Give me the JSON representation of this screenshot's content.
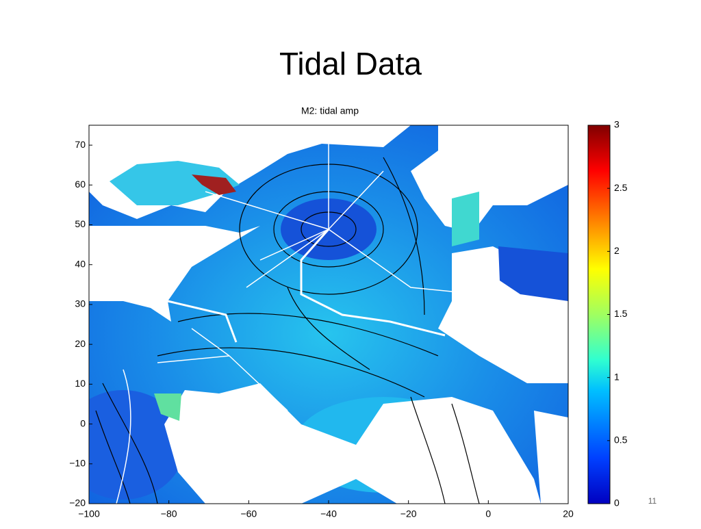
{
  "slide": {
    "title": "Tidal Data",
    "number": "11"
  },
  "chart_data": {
    "type": "map",
    "title": "M2: tidal amp",
    "colormap": "jet",
    "xlim": [
      -100,
      20
    ],
    "xticks": [
      {
        "value": -100,
        "label": "−100"
      },
      {
        "value": -80,
        "label": "−80"
      },
      {
        "value": -60,
        "label": "−60"
      },
      {
        "value": -40,
        "label": "−40"
      },
      {
        "value": -20,
        "label": "−20"
      },
      0,
      20
    ],
    "ylim": [
      -20,
      75
    ],
    "yticks": [
      {
        "value": -20,
        "label": "−20"
      },
      {
        "value": -10,
        "label": "−10"
      },
      0,
      10,
      20,
      30,
      40,
      50,
      60,
      70
    ],
    "clim": [
      0,
      3
    ],
    "cticks": [
      0,
      0.5,
      1,
      1.5,
      2,
      2.5,
      3
    ]
  }
}
